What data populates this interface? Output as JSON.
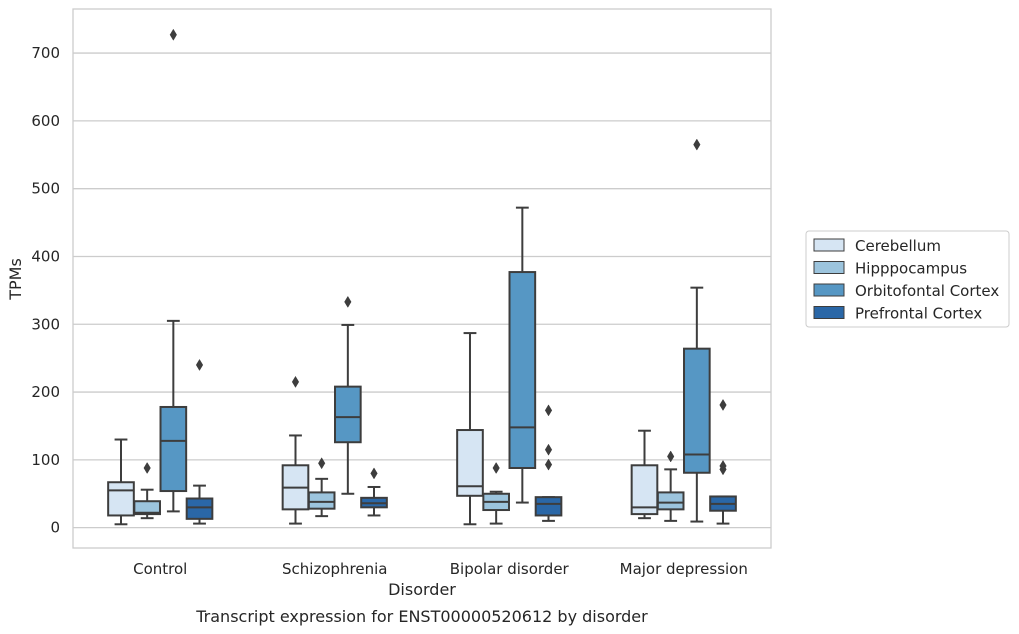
{
  "chart_data": {
    "type": "box",
    "title": "",
    "caption": "Transcript expression for ENST00000520612 by disorder",
    "xlabel": "Disorder",
    "ylabel": "TPMs",
    "ylim": [
      -30,
      765
    ],
    "yticks": [
      0,
      100,
      200,
      300,
      400,
      500,
      600,
      700
    ],
    "grid": true,
    "legend_position": "right",
    "categories": [
      "Control",
      "Schizophrenia",
      "Bipolar disorder",
      "Major depression"
    ],
    "series": [
      {
        "name": "Cerebellum",
        "color": "#d6e5f3",
        "boxes": [
          {
            "whisker_low": 5,
            "q1": 18,
            "median": 55,
            "q3": 67,
            "whisker_high": 130,
            "outliers": []
          },
          {
            "whisker_low": 6,
            "q1": 27,
            "median": 59,
            "q3": 92,
            "whisker_high": 136,
            "outliers": [
              215
            ]
          },
          {
            "whisker_low": 5,
            "q1": 47,
            "median": 61,
            "q3": 144,
            "whisker_high": 287,
            "outliers": []
          },
          {
            "whisker_low": 14,
            "q1": 20,
            "median": 30,
            "q3": 92,
            "whisker_high": 143,
            "outliers": []
          }
        ]
      },
      {
        "name": "Hipppocampus",
        "color": "#9cc4dd",
        "boxes": [
          {
            "whisker_low": 14,
            "q1": 20,
            "median": 22,
            "q3": 39,
            "whisker_high": 56,
            "outliers": [
              88
            ]
          },
          {
            "whisker_low": 17,
            "q1": 28,
            "median": 38,
            "q3": 52,
            "whisker_high": 72,
            "outliers": [
              95
            ]
          },
          {
            "whisker_low": 6,
            "q1": 26,
            "median": 38,
            "q3": 50,
            "whisker_high": 53,
            "outliers": [
              88
            ]
          },
          {
            "whisker_low": 10,
            "q1": 27,
            "median": 37,
            "q3": 52,
            "whisker_high": 86,
            "outliers": [
              105
            ]
          }
        ]
      },
      {
        "name": "Orbitofontal Cortex",
        "color": "#5697c4",
        "boxes": [
          {
            "whisker_low": 24,
            "q1": 54,
            "median": 128,
            "q3": 178,
            "whisker_high": 305,
            "outliers": [
              727
            ]
          },
          {
            "whisker_low": 50,
            "q1": 126,
            "median": 163,
            "q3": 208,
            "whisker_high": 299,
            "outliers": [
              333
            ]
          },
          {
            "whisker_low": 37,
            "q1": 88,
            "median": 148,
            "q3": 377,
            "whisker_high": 472,
            "outliers": []
          },
          {
            "whisker_low": 9,
            "q1": 81,
            "median": 108,
            "q3": 264,
            "whisker_high": 354,
            "outliers": [
              565
            ]
          }
        ]
      },
      {
        "name": "Prefrontal Cortex",
        "color": "#2a67a7",
        "boxes": [
          {
            "whisker_low": 6,
            "q1": 13,
            "median": 30,
            "q3": 43,
            "whisker_high": 62,
            "outliers": [
              240
            ]
          },
          {
            "whisker_low": 18,
            "q1": 30,
            "median": 36,
            "q3": 44,
            "whisker_high": 60,
            "outliers": [
              80
            ]
          },
          {
            "whisker_low": 10,
            "q1": 18,
            "median": 35,
            "q3": 45,
            "whisker_high": 45,
            "outliers": [
              93,
              115,
              173
            ]
          },
          {
            "whisker_low": 6,
            "q1": 25,
            "median": 35,
            "q3": 46,
            "whisker_high": 46,
            "outliers": [
              86,
              91,
              181
            ]
          }
        ]
      }
    ]
  }
}
